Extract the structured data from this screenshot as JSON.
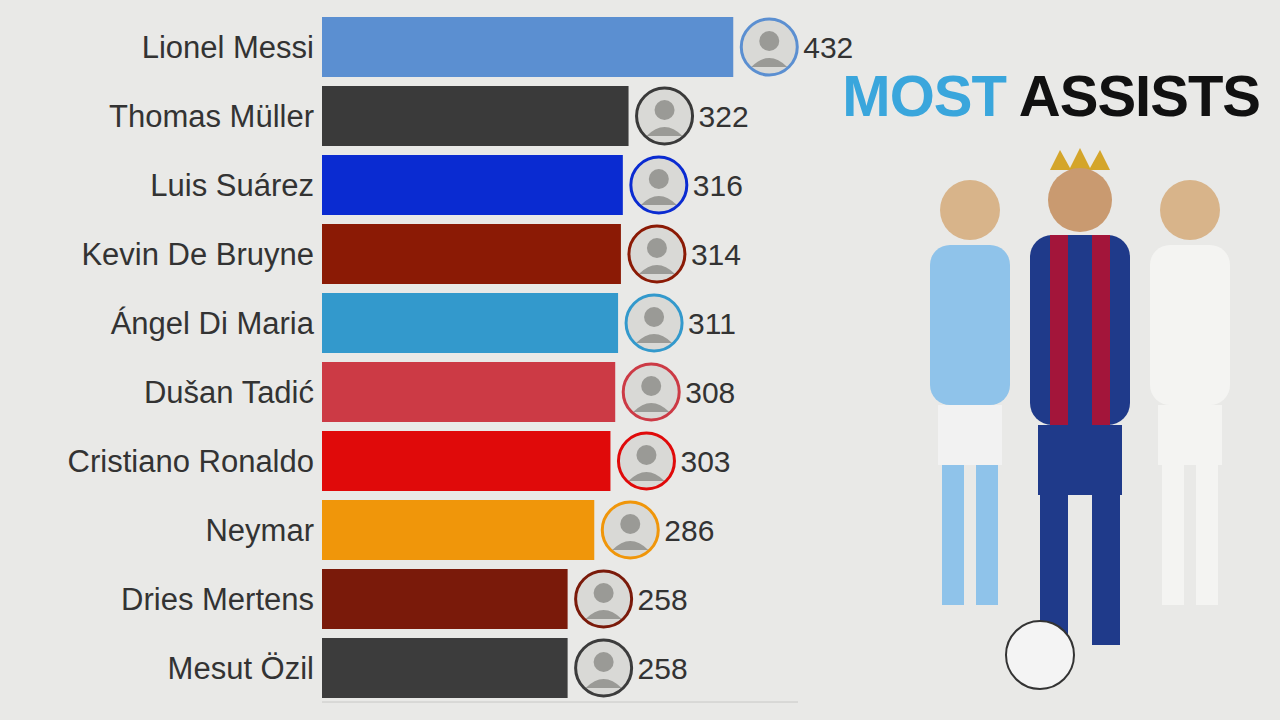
{
  "chart_data": {
    "type": "bar",
    "title": "MOST ASSISTS",
    "orientation": "horizontal",
    "categories": [
      "Lionel Messi",
      "Thomas Müller",
      "Luis Suárez",
      "Kevin De Bruyne",
      "Ángel Di Maria",
      "Dušan Tadić",
      "Cristiano Ronaldo",
      "Neymar",
      "Dries Mertens",
      "Mesut Özil"
    ],
    "values": [
      432,
      322,
      316,
      314,
      311,
      308,
      303,
      286,
      258,
      258
    ],
    "colors": [
      "#5b8fd1",
      "#3a3a3a",
      "#0a2bd1",
      "#8b1a05",
      "#3399cc",
      "#cc3a45",
      "#e00a0a",
      "#f0960a",
      "#7a1a0a",
      "#3c3c3c"
    ],
    "xlim": [
      0,
      500
    ],
    "grid": false,
    "data_labels": true,
    "tick_labels": "y"
  }
}
